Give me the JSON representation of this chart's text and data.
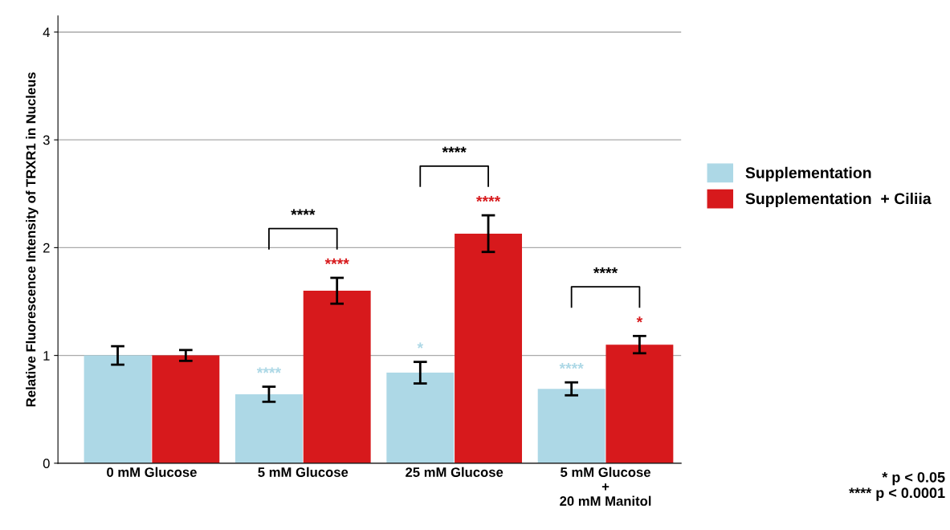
{
  "chart_data": {
    "type": "bar",
    "ylabel": "Relative Fluorescence Intensity of TRXR1 in Nucleus",
    "categories": [
      "0 mM Glucose",
      "5 mM Glucose",
      "25 mM Glucose",
      "5 mM Glucose\n+\n20 mM Manitol"
    ],
    "series": [
      {
        "name": "Supplementation",
        "color": "#add8e6",
        "values": [
          1.0,
          0.64,
          0.84,
          0.69
        ],
        "errors": [
          0.085,
          0.07,
          0.1,
          0.06
        ],
        "value_labels": [
          null,
          "****",
          "*",
          "****"
        ]
      },
      {
        "name": "Supplementation  + Ciliia",
        "color": "#d7191c",
        "values": [
          1.0,
          1.6,
          2.13,
          1.1
        ],
        "errors": [
          0.05,
          0.12,
          0.17,
          0.08
        ],
        "value_labels": [
          null,
          "****",
          "****",
          "*"
        ]
      }
    ],
    "ylim": [
      0,
      4.15
    ],
    "yticks": [
      0,
      1,
      2,
      3,
      4
    ],
    "grid": "y",
    "legend": "right",
    "annotations": [
      "****",
      "****",
      "****",
      "* p < 0.05\n**** p < 0.0001"
    ]
  }
}
